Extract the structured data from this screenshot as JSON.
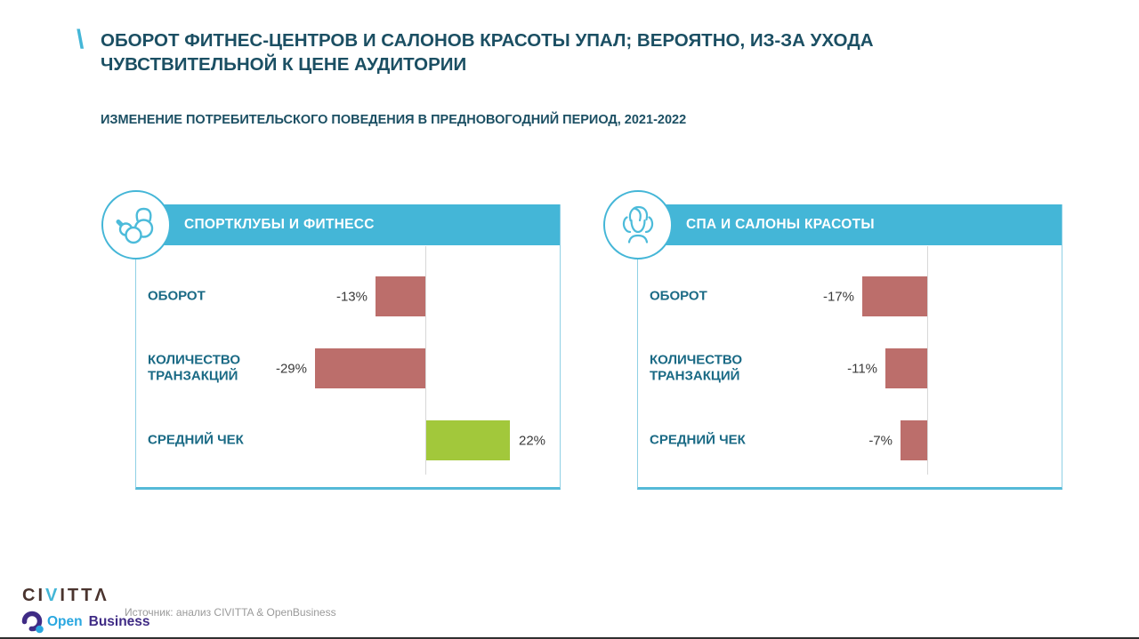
{
  "slide": {
    "accent_glyph": "\\",
    "title": "ОБОРОТ ФИТНЕС-ЦЕНТРОВ И САЛОНОВ КРАСОТЫ УПАЛ; ВЕРОЯТНО, ИЗ-ЗА УХОДА\nЧУВСТВИТЕЛЬНОЙ К ЦЕНЕ АУДИТОРИИ",
    "subtitle": "ИЗМЕНЕНИЕ ПОТРЕБИТЕЛЬСКОГО ПОВЕДЕНИЯ В ПРЕДНОВОГОДНИЙ ПЕРИОД, 2021-2022"
  },
  "colors": {
    "teal_accent": "#44b6d7",
    "dark_teal_text": "#1b4f63",
    "category_label_teal": "#1a6a85",
    "bar_negative": "#bc6e6b",
    "bar_positive": "#a2c83b",
    "axis_gray": "#d8d8d8"
  },
  "chart_data": [
    {
      "type": "bar",
      "orientation": "horizontal",
      "title": "СПОРТКЛУБЫ И ФИТНЕСС",
      "icon": "fitness-kettlebell-icon",
      "categories": [
        "ОБОРОТ",
        "КОЛИЧЕСТВО ТРАНЗАКЦИЙ",
        "СРЕДНИЙ ЧЕК"
      ],
      "values": [
        -13,
        -29,
        22
      ],
      "labels": [
        "-13%",
        "-29%",
        "22%"
      ],
      "unit": "%",
      "baseline": 0,
      "xlim": [
        -35,
        25
      ],
      "grid": false,
      "legend": false
    },
    {
      "type": "bar",
      "orientation": "horizontal",
      "title": "СПА И САЛОНЫ КРАСОТЫ",
      "icon": "spa-face-massage-icon",
      "categories": [
        "ОБОРОТ",
        "КОЛИЧЕСТВО ТРАНЗАКЦИЙ",
        "СРЕДНИЙ ЧЕК"
      ],
      "values": [
        -17,
        -11,
        -7
      ],
      "labels": [
        "-17%",
        "-11%",
        "-7%"
      ],
      "unit": "%",
      "baseline": 0,
      "xlim": [
        -35,
        25
      ],
      "grid": false,
      "legend": false
    }
  ],
  "footer": {
    "civitta": {
      "ci": "CI",
      "v": "V",
      "tta": "ITTΛ"
    },
    "openbusiness": {
      "open": "Open",
      "business": "Business"
    },
    "source": "Источник: анализ CIVITTA & OpenBusiness"
  }
}
